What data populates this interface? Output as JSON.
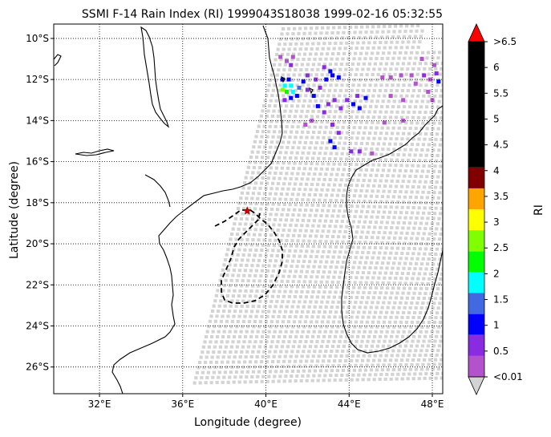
{
  "title": "SSMI F-14 Rain Index (RI) 1999043S18038 1999-02-16 05:32:55",
  "map": {
    "xlabel": "Longitude (degree)",
    "ylabel": "Latitude (degree)",
    "lon_range": [
      29.8,
      48.5
    ],
    "lat_range": [
      -27.3,
      -9.3
    ],
    "lon_ticks": [
      "32°E",
      "36°E",
      "40°E",
      "44°E",
      "48°E"
    ],
    "lon_tick_values": [
      32,
      36,
      40,
      44,
      48
    ],
    "lat_ticks": [
      "10°S",
      "12°S",
      "14°S",
      "16°S",
      "18°S",
      "20°S",
      "22°S",
      "24°S",
      "26°S"
    ],
    "lat_tick_values": [
      -10,
      -12,
      -14,
      -16,
      -18,
      -20,
      -22,
      -24,
      -26
    ],
    "gridlines": "dotted",
    "storm_center": {
      "lon": 39.1,
      "lat": -18.4,
      "marker": "red star"
    }
  },
  "colorbar": {
    "label": "RI",
    "tick_labels": [
      ">6.5",
      "6",
      "5.5",
      "5",
      "4.5",
      "4",
      "3.5",
      "3",
      "2.5",
      "2",
      "1.5",
      "1",
      "0.5",
      "<0.01"
    ],
    "bins": [
      {
        "from": 0.01,
        "to": 0.5,
        "color": "#b452cd"
      },
      {
        "from": 0.5,
        "to": 1.0,
        "color": "#8a2be2"
      },
      {
        "from": 1.0,
        "to": 1.5,
        "color": "#0000ff"
      },
      {
        "from": 1.5,
        "to": 2.0,
        "color": "#4169e1"
      },
      {
        "from": 2.0,
        "to": 2.5,
        "color": "#00ffff"
      },
      {
        "from": 2.5,
        "to": 3.0,
        "color": "#00ff00"
      },
      {
        "from": 3.0,
        "to": 3.5,
        "color": "#7fff00"
      },
      {
        "from": 3.5,
        "to": 4.0,
        "color": "#ffff00"
      },
      {
        "from": 4.0,
        "to": 4.5,
        "color": "#ffa500"
      },
      {
        "from": 4.5,
        "to": 5.0,
        "color": "#800000"
      },
      {
        "from": 5.0,
        "to": 6.5,
        "color": "#000000"
      }
    ],
    "over_color": "#ff0000",
    "under_color": "#d3d3d3"
  },
  "chart_data": {
    "type": "scatter",
    "x_label": "Longitude (degree)",
    "y_label": "Latitude (degree)",
    "xlim": [
      29.8,
      48.5
    ],
    "ylim": [
      -27.3,
      -9.3
    ],
    "swath_color": "#d3d3d3",
    "rain_points": [
      {
        "lon": 40.7,
        "lat": -10.9,
        "ri": 0.3
      },
      {
        "lon": 41.0,
        "lat": -11.1,
        "ri": 0.3
      },
      {
        "lon": 41.3,
        "lat": -10.9,
        "ri": 0.3
      },
      {
        "lon": 41.2,
        "lat": -11.3,
        "ri": 0.8
      },
      {
        "lon": 40.8,
        "lat": -12.0,
        "ri": 1.2
      },
      {
        "lon": 41.1,
        "lat": -12.0,
        "ri": 1.2
      },
      {
        "lon": 40.9,
        "lat": -12.3,
        "ri": 2.4
      },
      {
        "lon": 41.2,
        "lat": -12.3,
        "ri": 2.2
      },
      {
        "lon": 40.8,
        "lat": -12.5,
        "ri": 3.2
      },
      {
        "lon": 41.0,
        "lat": -12.6,
        "ri": 2.8
      },
      {
        "lon": 41.3,
        "lat": -12.6,
        "ri": 2.1
      },
      {
        "lon": 41.6,
        "lat": -12.4,
        "ri": 1.6
      },
      {
        "lon": 41.5,
        "lat": -12.8,
        "ri": 1.2
      },
      {
        "lon": 41.2,
        "lat": -12.9,
        "ri": 1.2
      },
      {
        "lon": 40.9,
        "lat": -13.0,
        "ri": 0.8
      },
      {
        "lon": 41.8,
        "lat": -12.1,
        "ri": 1.2
      },
      {
        "lon": 42.0,
        "lat": -12.5,
        "ri": 0.8
      },
      {
        "lon": 42.3,
        "lat": -12.8,
        "ri": 1.2
      },
      {
        "lon": 42.6,
        "lat": -12.4,
        "ri": 0.8
      },
      {
        "lon": 42.9,
        "lat": -12.0,
        "ri": 1.2
      },
      {
        "lon": 43.2,
        "lat": -11.8,
        "ri": 1.2
      },
      {
        "lon": 43.5,
        "lat": -11.9,
        "ri": 1.2
      },
      {
        "lon": 42.5,
        "lat": -13.3,
        "ri": 1.2
      },
      {
        "lon": 42.8,
        "lat": -13.6,
        "ri": 0.8
      },
      {
        "lon": 43.0,
        "lat": -13.2,
        "ri": 0.8
      },
      {
        "lon": 43.3,
        "lat": -13.0,
        "ri": 0.8
      },
      {
        "lon": 43.6,
        "lat": -13.4,
        "ri": 0.8
      },
      {
        "lon": 43.9,
        "lat": -13.0,
        "ri": 0.8
      },
      {
        "lon": 44.2,
        "lat": -13.2,
        "ri": 1.2
      },
      {
        "lon": 44.5,
        "lat": -13.4,
        "ri": 1.2
      },
      {
        "lon": 44.8,
        "lat": -12.9,
        "ri": 1.2
      },
      {
        "lon": 44.4,
        "lat": -12.8,
        "ri": 0.8
      },
      {
        "lon": 43.2,
        "lat": -14.2,
        "ri": 0.8
      },
      {
        "lon": 43.5,
        "lat": -14.6,
        "ri": 0.8
      },
      {
        "lon": 42.2,
        "lat": -14.0,
        "ri": 0.3
      },
      {
        "lon": 41.9,
        "lat": -14.2,
        "ri": 0.3
      },
      {
        "lon": 43.1,
        "lat": -15.0,
        "ri": 1.2
      },
      {
        "lon": 43.3,
        "lat": -15.3,
        "ri": 1.2
      },
      {
        "lon": 44.1,
        "lat": -15.5,
        "ri": 0.8
      },
      {
        "lon": 44.5,
        "lat": -15.5,
        "ri": 0.8
      },
      {
        "lon": 45.1,
        "lat": -15.6,
        "ri": 0.3
      },
      {
        "lon": 45.7,
        "lat": -14.1,
        "ri": 0.3
      },
      {
        "lon": 46.6,
        "lat": -14.0,
        "ri": 0.3
      },
      {
        "lon": 45.6,
        "lat": -11.9,
        "ri": 0.3
      },
      {
        "lon": 46.0,
        "lat": -11.9,
        "ri": 0.3
      },
      {
        "lon": 46.5,
        "lat": -11.8,
        "ri": 0.3
      },
      {
        "lon": 47.0,
        "lat": -11.8,
        "ri": 0.3
      },
      {
        "lon": 47.2,
        "lat": -12.2,
        "ri": 0.3
      },
      {
        "lon": 47.6,
        "lat": -11.8,
        "ri": 0.8
      },
      {
        "lon": 47.9,
        "lat": -12.0,
        "ri": 0.3
      },
      {
        "lon": 48.2,
        "lat": -11.7,
        "ri": 0.8
      },
      {
        "lon": 48.3,
        "lat": -12.1,
        "ri": 1.2
      },
      {
        "lon": 47.8,
        "lat": -12.6,
        "ri": 0.3
      },
      {
        "lon": 48.0,
        "lat": -13.0,
        "ri": 0.3
      },
      {
        "lon": 47.5,
        "lat": -11.0,
        "ri": 0.3
      },
      {
        "lon": 48.1,
        "lat": -11.3,
        "ri": 0.3
      },
      {
        "lon": 46.6,
        "lat": -13.0,
        "ri": 0.3
      },
      {
        "lon": 46.0,
        "lat": -12.8,
        "ri": 0.3
      },
      {
        "lon": 43.1,
        "lat": -11.6,
        "ri": 1.2
      },
      {
        "lon": 42.8,
        "lat": -11.4,
        "ri": 0.8
      },
      {
        "lon": 42.4,
        "lat": -12.0,
        "ri": 0.8
      },
      {
        "lon": 42.0,
        "lat": -11.8,
        "ri": 0.8
      }
    ]
  }
}
